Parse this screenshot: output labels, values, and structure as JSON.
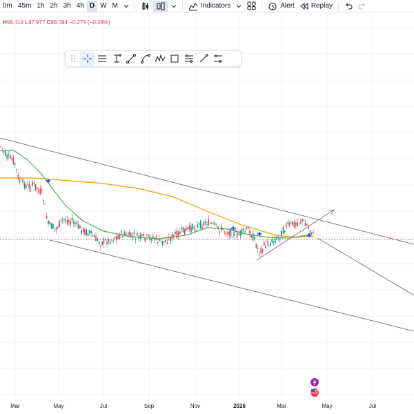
{
  "toolbar": {
    "timeframes": [
      "0m",
      "45m",
      "1h",
      "2h",
      "3h",
      "4h",
      "D",
      "W",
      "M"
    ],
    "active_timeframe": "D",
    "indicators_label": "Indicators",
    "alert_label": "Alert",
    "replay_label": "Replay"
  },
  "ohlc": {
    "h_label": "H",
    "h_value": "98.414",
    "l_label": "L",
    "l_value": "97.977",
    "c_label": "C",
    "c_value": "98.094",
    "change": "−0.279 (−0.28%)"
  },
  "drawing_toolbar": {
    "tools": [
      "drag-handle-icon",
      "crosshair-icon",
      "horizontal-ray-icon",
      "cursor-text-icon",
      "trend-line-icon",
      "curve-icon",
      "pattern-icon",
      "rectangle-icon",
      "parallel-channel-icon",
      "ray-icon",
      "range-icon"
    ]
  },
  "xaxis": {
    "labels": [
      "Mar",
      "May",
      "Jul",
      "Sep",
      "Nov",
      "2026",
      "Mar",
      "May",
      "Jul"
    ],
    "bold_label": "2026"
  },
  "colors": {
    "up": "#089981",
    "down": "#f23645",
    "ma_fast": "#4caf50",
    "ma_slow": "#ff9800",
    "trendline": "#787b86",
    "marker": "#2962ff"
  }
}
